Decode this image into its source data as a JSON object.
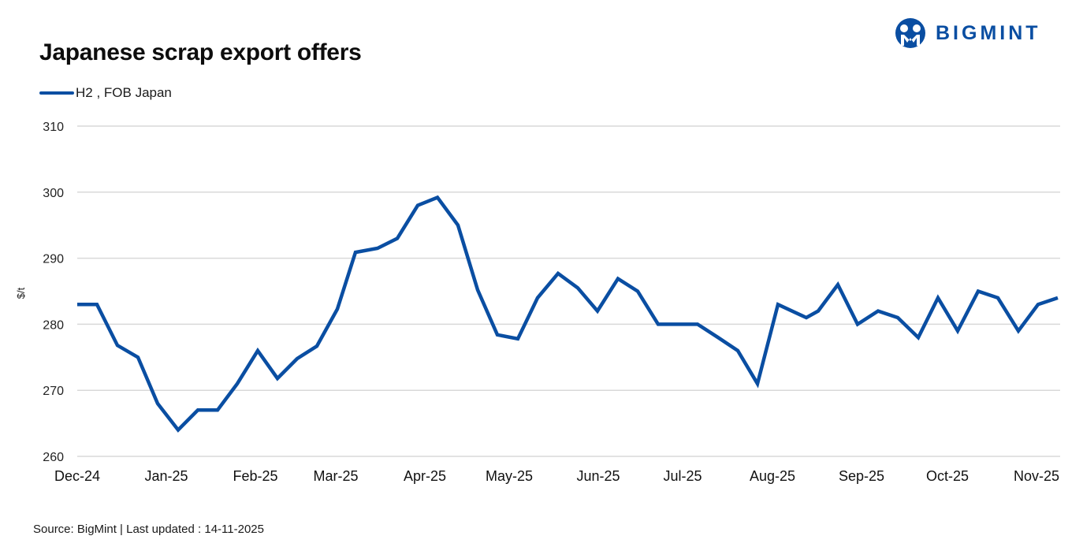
{
  "header": {
    "title": "Japanese scrap export offers",
    "brand": "BIGMINT"
  },
  "legend": {
    "items": [
      {
        "label": "H2 , FOB Japan",
        "color": "#0a4ea2"
      }
    ]
  },
  "footer": {
    "source": "Source: BigMint  | Last updated : 14-11-2025"
  },
  "colors": {
    "series": "#0a4ea2",
    "grid": "#d9d9d9",
    "brand": "#0a4ea2"
  },
  "chart_data": {
    "type": "line",
    "title": "Japanese scrap export offers",
    "xlabel": "",
    "ylabel": "$/t",
    "ylim": [
      260,
      310
    ],
    "yticks": [
      260,
      270,
      280,
      290,
      300,
      310
    ],
    "grid": true,
    "legend_position": "top-left",
    "x_tick_labels": [
      "Dec-24",
      "Jan-25",
      "Feb-25",
      "Mar-25",
      "Apr-25",
      "May-25",
      "Jun-25",
      "Jul-25",
      "Aug-25",
      "Sep-25",
      "Oct-25",
      "Nov-25"
    ],
    "series": [
      {
        "name": "H2 , FOB Japan",
        "values": [
          283,
          283,
          276.8,
          275,
          268,
          264,
          267,
          267,
          271,
          276,
          271.8,
          274.8,
          276.7,
          282.3,
          290.9,
          291.5,
          293,
          298,
          299.2,
          295,
          285.2,
          278.4,
          277.8,
          284,
          287.7,
          285.5,
          282,
          286.9,
          285,
          280,
          280,
          280,
          278,
          276,
          271,
          283,
          281,
          282,
          286,
          280,
          282,
          281,
          278,
          284,
          279,
          285,
          284,
          279,
          283,
          284
        ]
      }
    ]
  }
}
